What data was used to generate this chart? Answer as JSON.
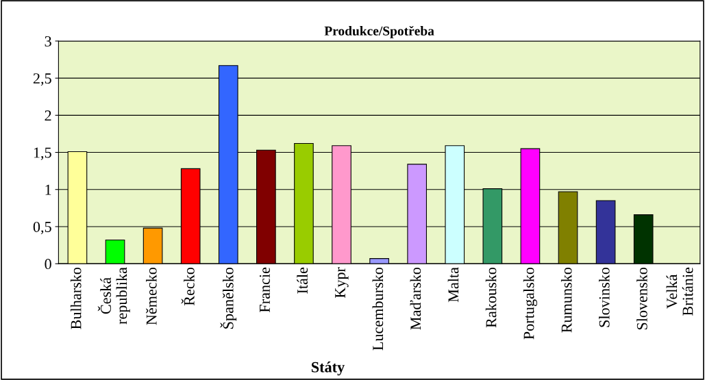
{
  "chart_data": {
    "type": "bar",
    "title": "Produkce/Spotřeba",
    "xlabel": "Státy",
    "categories": [
      "Bulharsko",
      "Česká\nrepublika",
      "Německo",
      "Řecko",
      "Španělsko",
      "Francie",
      "Itále",
      "Kypr",
      "Lucembursko",
      "Maďarsko",
      "Malta",
      "Rakousko",
      "Portugalsko",
      "Rumunsko",
      "Slovinsko",
      "Slovensko",
      "Velká\nBritánie"
    ],
    "values": [
      1.51,
      0.32,
      0.48,
      1.28,
      2.67,
      1.53,
      1.62,
      1.59,
      0.07,
      1.34,
      1.59,
      1.01,
      1.55,
      0.97,
      0.85,
      0.66,
      0
    ],
    "colors": [
      "#ffff99",
      "#00ff00",
      "#ff9900",
      "#ff0000",
      "#3366ff",
      "#800000",
      "#99cc00",
      "#ff99cc",
      "#9999ff",
      "#cc99ff",
      "#ccffff",
      "#339966",
      "#ff00ff",
      "#808000",
      "#333399",
      "#003300",
      "#ffffff"
    ],
    "ylim": [
      0,
      3
    ],
    "yticks": [
      0,
      {
        "value": 0.5,
        "label": "0,5"
      },
      1,
      {
        "value": 1.5,
        "label": "1,5"
      },
      2,
      {
        "value": 2.5,
        "label": "2,5"
      },
      3
    ],
    "grid": "y",
    "legend": false
  }
}
